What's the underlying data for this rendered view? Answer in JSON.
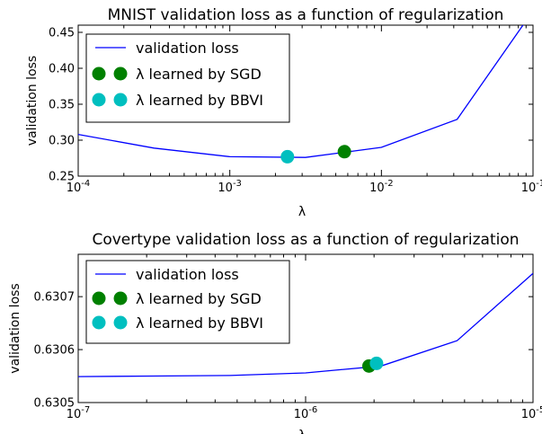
{
  "chart_data": [
    {
      "type": "line",
      "title": "MNIST validation loss as a function of regularization",
      "xlabel": "λ",
      "ylabel": "validation loss",
      "xscale": "log",
      "xlim": [
        0.0001,
        0.1
      ],
      "ylim": [
        0.25,
        0.46
      ],
      "xticks": [
        {
          "value": 0.0001,
          "base": "10",
          "exp": "-4"
        },
        {
          "value": 0.001,
          "base": "10",
          "exp": "-3"
        },
        {
          "value": 0.01,
          "base": "10",
          "exp": "-2"
        },
        {
          "value": 0.1,
          "base": "10",
          "exp": "-1"
        }
      ],
      "yticks": [
        {
          "value": 0.25,
          "label": "0.25"
        },
        {
          "value": 0.3,
          "label": "0.30"
        },
        {
          "value": 0.35,
          "label": "0.35"
        },
        {
          "value": 0.4,
          "label": "0.40"
        },
        {
          "value": 0.45,
          "label": "0.45"
        }
      ],
      "series": [
        {
          "name": "validation loss",
          "kind": "line",
          "color": "#0000ff",
          "x": [
            0.0001,
            0.000316,
            0.001,
            0.00316,
            0.01,
            0.0316,
            0.1
          ],
          "y": [
            0.308,
            0.289,
            0.277,
            0.276,
            0.29,
            0.329,
            0.48
          ]
        },
        {
          "name": "λ learned by SGD",
          "kind": "point",
          "color": "#008000",
          "x": [
            0.0057
          ],
          "y": [
            0.284
          ]
        },
        {
          "name": "λ learned by BBVI",
          "kind": "point",
          "color": "#00bfbf",
          "x": [
            0.0024
          ],
          "y": [
            0.277
          ]
        }
      ],
      "legend": "top-left"
    },
    {
      "type": "line",
      "title": "Covertype validation loss as a function of regularization",
      "xlabel": "λ",
      "ylabel": "validation loss",
      "xscale": "log",
      "xlim": [
        1e-07,
        1e-05
      ],
      "ylim": [
        0.6305,
        0.63078
      ],
      "xticks": [
        {
          "value": 1e-07,
          "base": "10",
          "exp": "-7"
        },
        {
          "value": 1e-06,
          "base": "10",
          "exp": "-6"
        },
        {
          "value": 1e-05,
          "base": "10",
          "exp": "-5"
        }
      ],
      "yticks": [
        {
          "value": 0.6305,
          "label": "0.6305"
        },
        {
          "value": 0.6306,
          "label": "0.6306"
        },
        {
          "value": 0.6307,
          "label": "0.6307"
        }
      ],
      "series": [
        {
          "name": "validation loss",
          "kind": "line",
          "color": "#0000ff",
          "x": [
            1e-07,
            2.15e-07,
            4.64e-07,
            1e-06,
            2.15e-06,
            4.64e-06,
            1e-05
          ],
          "y": [
            0.630549,
            0.63055,
            0.630551,
            0.630556,
            0.630569,
            0.630617,
            0.630744
          ]
        },
        {
          "name": "λ learned by SGD",
          "kind": "point",
          "color": "#008000",
          "x": [
            1.9e-06
          ],
          "y": [
            0.630569
          ]
        },
        {
          "name": "λ learned by BBVI",
          "kind": "point",
          "color": "#00bfbf",
          "x": [
            2.05e-06
          ],
          "y": [
            0.630574
          ]
        }
      ],
      "legend": "top-left"
    }
  ]
}
